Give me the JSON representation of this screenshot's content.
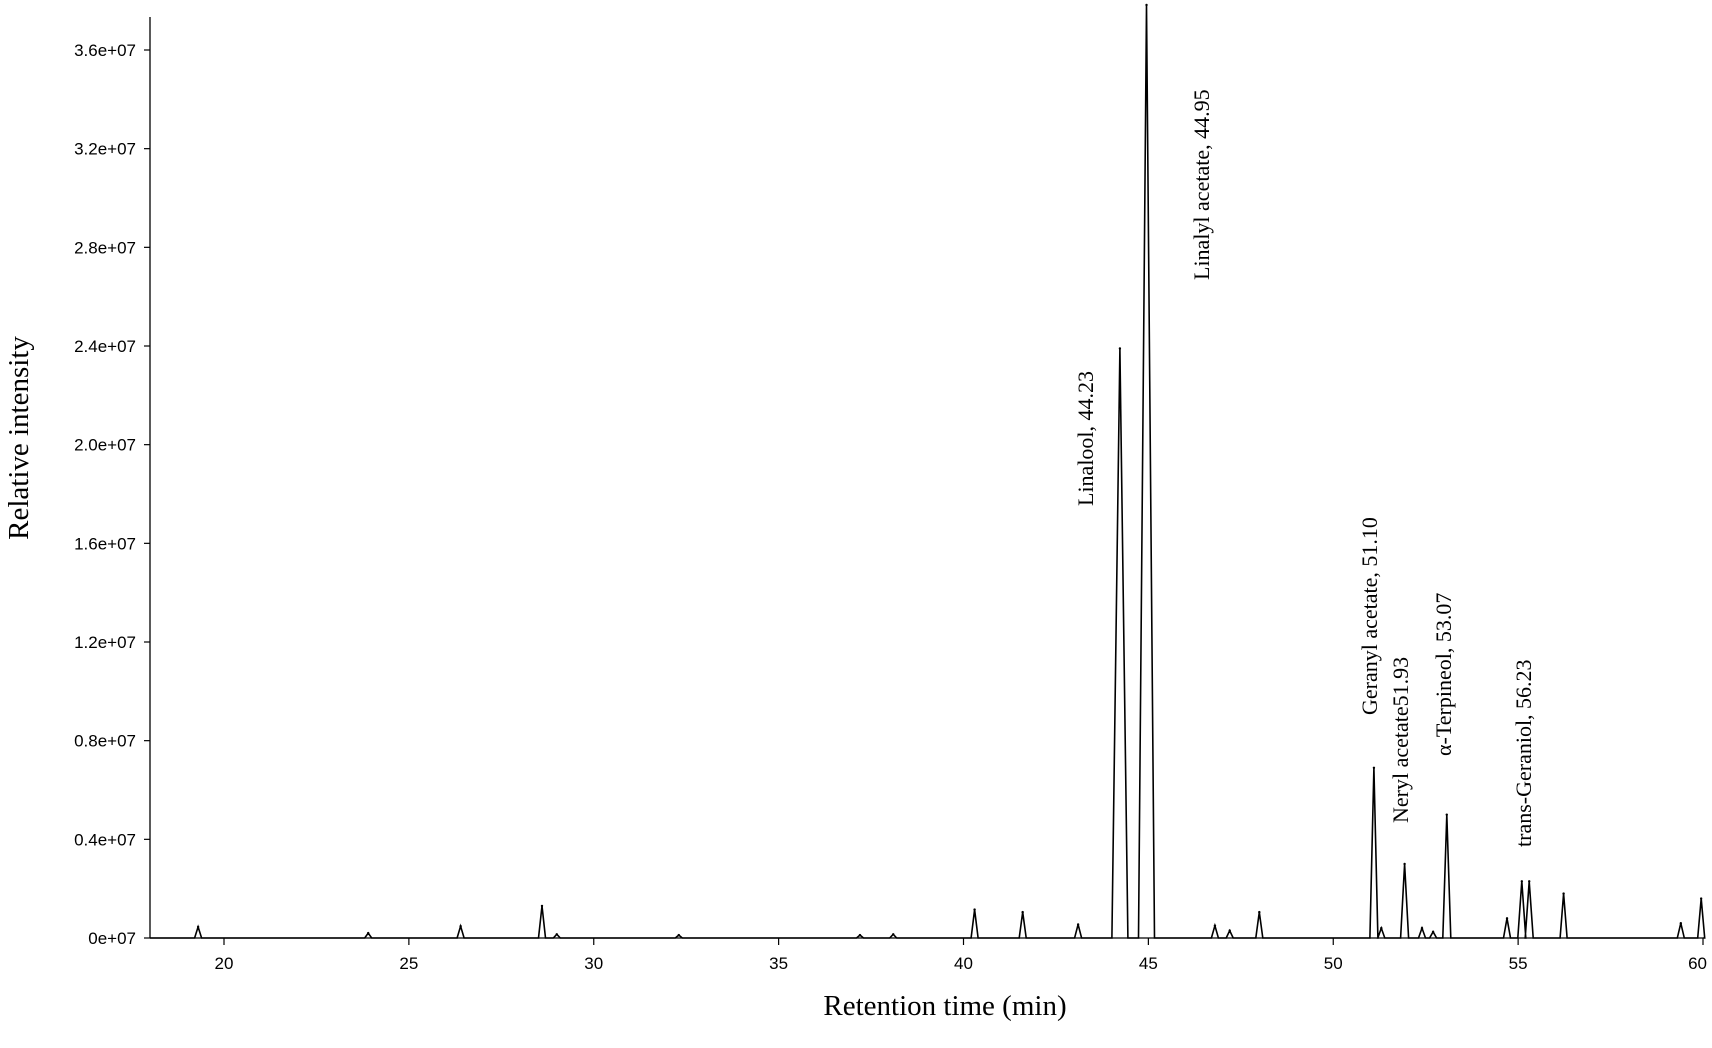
{
  "chart_data": {
    "type": "line",
    "title": "",
    "xlabel": "Retention time (min)",
    "ylabel": "Relative intensity",
    "xlim": [
      18,
      60
    ],
    "ylim": [
      0,
      37000000
    ],
    "x_ticks": [
      20,
      25,
      30,
      35,
      40,
      45,
      50,
      55,
      60
    ],
    "x_tick_labels": [
      "20",
      "25",
      "30",
      "35",
      "40",
      "45",
      "50",
      "55",
      "60"
    ],
    "y_ticks": [
      0,
      4000000,
      8000000,
      12000000,
      16000000,
      20000000,
      24000000,
      28000000,
      32000000,
      36000000
    ],
    "y_tick_labels": [
      "0e+07",
      "0.4e+07",
      "0.8e+07",
      "1.2e+07",
      "1.6e+07",
      "2.0e+07",
      "2.4e+07",
      "2.8e+07",
      "3.2e+07",
      "3.6e+07"
    ],
    "grid": false,
    "line_color": "#000000",
    "series": [
      {
        "peaks": [
          {
            "x": 19.3,
            "y": 450000
          },
          {
            "x": 23.9,
            "y": 200000
          },
          {
            "x": 26.4,
            "y": 480000
          },
          {
            "x": 28.6,
            "y": 1300000
          },
          {
            "x": 29.0,
            "y": 150000
          },
          {
            "x": 32.3,
            "y": 120000
          },
          {
            "x": 37.2,
            "y": 120000
          },
          {
            "x": 38.1,
            "y": 150000
          },
          {
            "x": 40.3,
            "y": 1150000
          },
          {
            "x": 41.6,
            "y": 1050000
          },
          {
            "x": 43.1,
            "y": 550000
          },
          {
            "x": 44.23,
            "y": 23900000
          },
          {
            "x": 44.95,
            "y": 38000000
          },
          {
            "x": 46.8,
            "y": 500000
          },
          {
            "x": 47.2,
            "y": 300000
          },
          {
            "x": 48.0,
            "y": 1050000
          },
          {
            "x": 51.1,
            "y": 6900000
          },
          {
            "x": 51.3,
            "y": 400000
          },
          {
            "x": 51.93,
            "y": 3000000
          },
          {
            "x": 52.4,
            "y": 400000
          },
          {
            "x": 52.7,
            "y": 250000
          },
          {
            "x": 53.07,
            "y": 5000000
          },
          {
            "x": 54.7,
            "y": 800000
          },
          {
            "x": 55.1,
            "y": 2300000
          },
          {
            "x": 55.3,
            "y": 2300000
          },
          {
            "x": 56.23,
            "y": 1800000
          },
          {
            "x": 59.4,
            "y": 600000
          },
          {
            "x": 59.95,
            "y": 1600000
          }
        ]
      }
    ],
    "annotations": [
      {
        "text": "Linalool,  44.23",
        "x": 44.23
      },
      {
        "text": "Linalyl  acetate,  44.95",
        "x": 44.95
      },
      {
        "text": "Geranyl  acetate,  51.10",
        "x": 51.1
      },
      {
        "text": "Neryl acetate51.93",
        "x": 51.93
      },
      {
        "text": "α-Terpineol,  53.07",
        "x": 53.07
      },
      {
        "text": "trans-Geraniol,  56.23",
        "x": 56.23
      }
    ]
  }
}
